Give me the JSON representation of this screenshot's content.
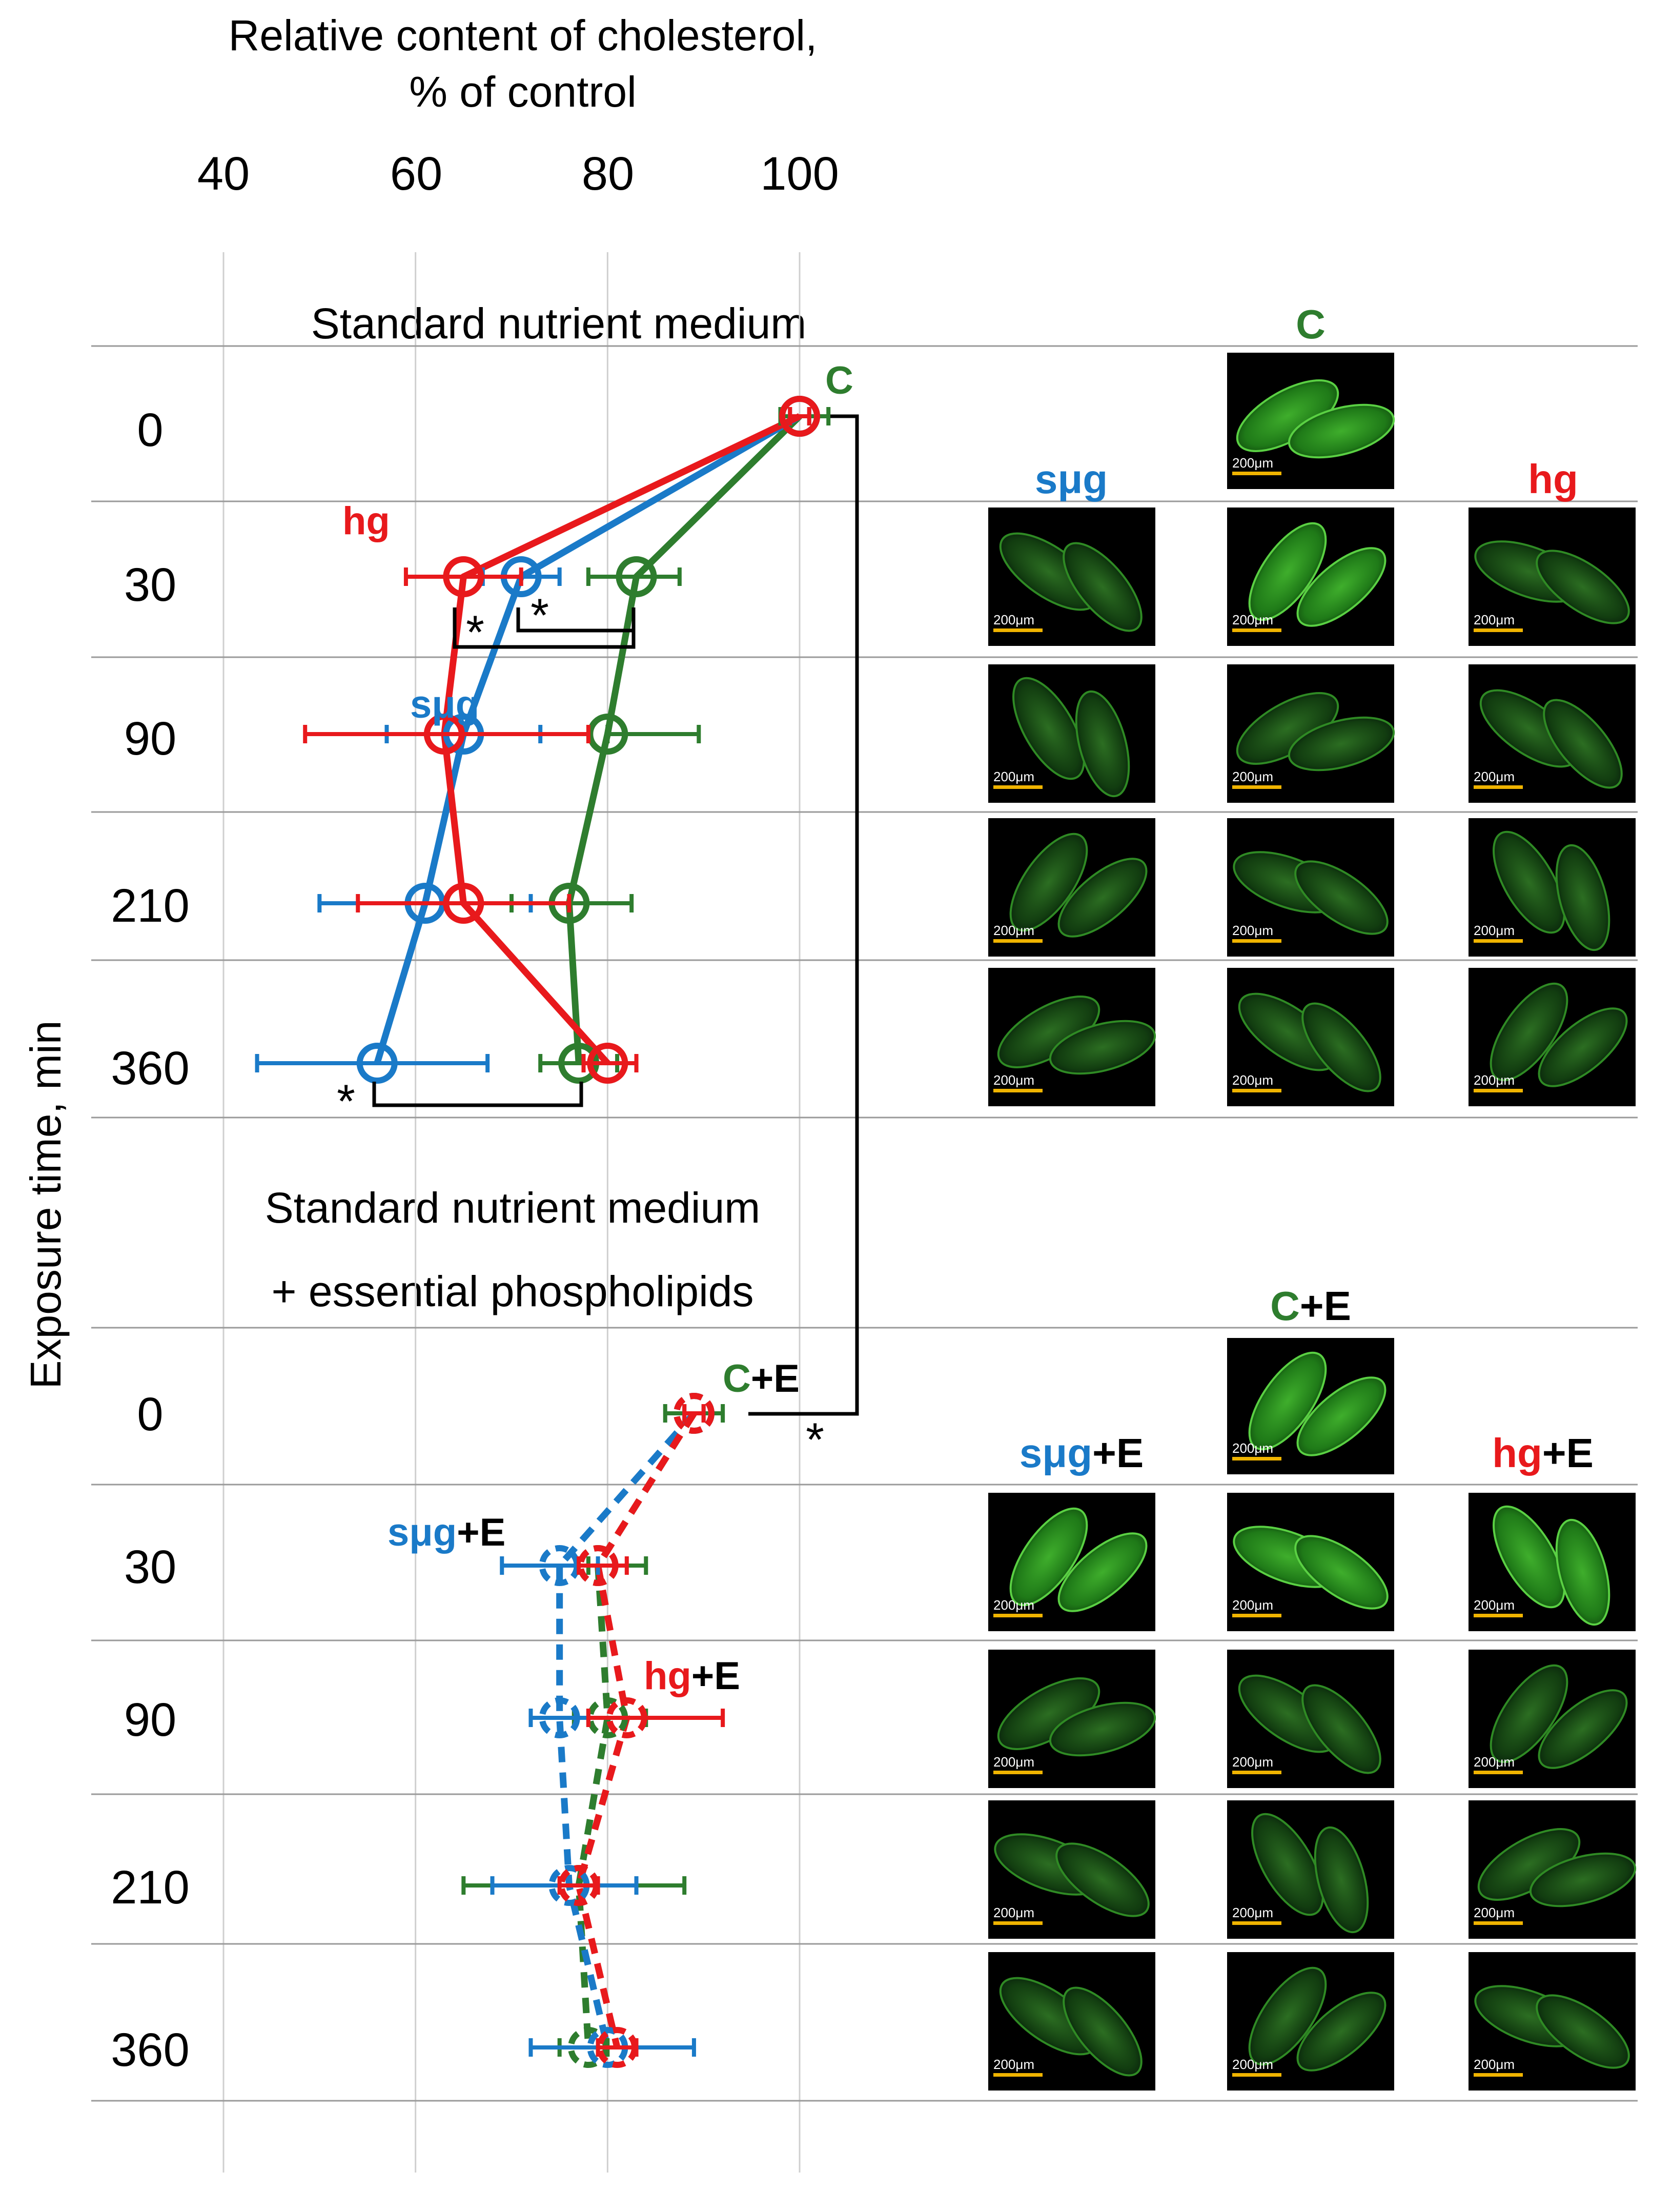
{
  "chart_data": {
    "type": "line",
    "title": "Relative content of cholesterol, % of control",
    "title_lines": [
      "Relative content of cholesterol,",
      "% of control"
    ],
    "xlabel": "Relative content of cholesterol, % of control",
    "ylabel": "Exposure time, min",
    "xlim": [
      40,
      100
    ],
    "x_ticks": [
      "40",
      "60",
      "80",
      "100"
    ],
    "x_tick_values": [
      40,
      60,
      80,
      100
    ],
    "grid": true,
    "colors": {
      "C": "#2e7d2e",
      "smg": "#1a7ac8",
      "hg": "#e8191c",
      "black": "#000000"
    },
    "panels": [
      {
        "name": "standard",
        "title": [
          "Standard nutrient medium"
        ],
        "line_style": "solid",
        "times": [
          "0",
          "30",
          "90",
          "210",
          "360"
        ],
        "series": [
          {
            "key": "C",
            "name": "C",
            "color": "#2e7d2e",
            "values": [
              100,
              83,
              80,
              76,
              77
            ],
            "errors": [
              [
                98,
                103
              ],
              [
                78,
                87.5
              ],
              [
                80,
                89.5
              ],
              [
                70,
                82.5
              ],
              [
                73,
                81
              ]
            ]
          },
          {
            "key": "smg",
            "name": "sμg",
            "color": "#1a7ac8",
            "values": [
              100,
              71,
              65,
              61,
              56
            ],
            "errors": [
              [
                99,
                101
              ],
              [
                67,
                75
              ],
              [
                57,
                73
              ],
              [
                50,
                72
              ],
              [
                43.5,
                67.5
              ]
            ]
          },
          {
            "key": "hg",
            "name": "hg",
            "color": "#e8191c",
            "values": [
              100,
              65,
              63,
              65,
              80
            ],
            "errors": [
              [
                99,
                101
              ],
              [
                59,
                71
              ],
              [
                48.5,
                78
              ],
              [
                54,
                76
              ],
              [
                77.5,
                83
              ]
            ]
          }
        ],
        "labels": [
          {
            "text": "C",
            "series": "C"
          },
          {
            "text": "hg",
            "series": "hg"
          },
          {
            "text": "sμg",
            "series": "smg"
          }
        ],
        "significance": [
          {
            "mark": "*",
            "between": [
              "hg",
              "C"
            ],
            "time": "30"
          },
          {
            "mark": "*",
            "between": [
              "sμg",
              "C"
            ],
            "time": "30"
          },
          {
            "mark": "*",
            "between": [
              "sμg",
              "C"
            ],
            "time": "360"
          }
        ]
      },
      {
        "name": "phospholipids",
        "title": [
          "Standard nutrient medium",
          "+ essential phospholipids"
        ],
        "line_style": "dashed",
        "times": [
          "0",
          "30",
          "90",
          "210",
          "360"
        ],
        "series": [
          {
            "key": "C",
            "name": "C+E",
            "color": "#2e7d2e",
            "values": [
              89,
              79,
              80,
              77,
              78
            ],
            "errors": [
              [
                86,
                92
              ],
              [
                78,
                84
              ],
              [
                76.5,
                84
              ],
              [
                65,
                88
              ],
              [
                75,
                80
              ]
            ]
          },
          {
            "key": "smg",
            "name": "sμg+E",
            "color": "#1a7ac8",
            "values": [
              89,
              75,
              75,
              76,
              80
            ],
            "errors": [
              [
                88,
                90
              ],
              [
                69,
                79
              ],
              [
                72,
                78
              ],
              [
                68,
                83
              ],
              [
                72,
                89
              ]
            ]
          },
          {
            "key": "hg",
            "name": "hg+E",
            "color": "#e8191c",
            "values": [
              89,
              79,
              82,
              77,
              81
            ],
            "errors": [
              [
                88,
                90
              ],
              [
                77,
                82
              ],
              [
                78,
                92
              ],
              [
                75,
                79
              ],
              [
                79,
                83
              ]
            ]
          }
        ],
        "labels": [
          {
            "text": "C",
            "suffix": "+E",
            "series": "C"
          },
          {
            "text": "sμg",
            "suffix": "+E",
            "series": "smg"
          },
          {
            "text": "hg",
            "suffix": "+E",
            "series": "hg"
          }
        ],
        "significance": [
          {
            "mark": "*",
            "between": [
              "C",
              "C+E"
            ],
            "time": "0"
          }
        ]
      }
    ]
  },
  "micrographs": {
    "scale_label": "200μm",
    "panels": [
      {
        "name": "standard",
        "headers": [
          {
            "text": "C",
            "suffix": "",
            "color": "#2e7d2e"
          },
          {
            "text": "sμg",
            "suffix": "",
            "color": "#1a7ac8"
          },
          {
            "text": "hg",
            "suffix": "",
            "color": "#e8191c"
          }
        ]
      },
      {
        "name": "phospholipids",
        "headers": [
          {
            "text": "C",
            "suffix": "+E",
            "color": "#2e7d2e"
          },
          {
            "text": "sμg",
            "suffix": "+E",
            "color": "#1a7ac8"
          },
          {
            "text": "hg",
            "suffix": "+E",
            "color": "#e8191c"
          }
        ]
      }
    ]
  }
}
